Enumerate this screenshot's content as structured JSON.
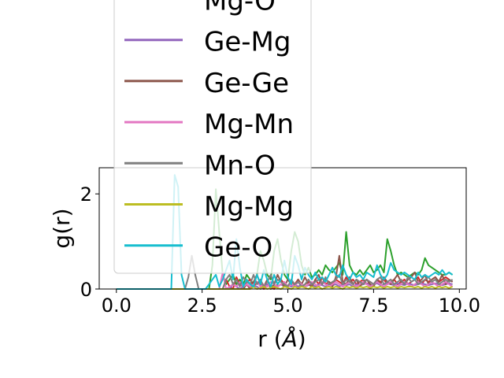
{
  "chart_data": {
    "type": "line",
    "title": "",
    "xlabel": "r ($\\AA$)",
    "xlabel_main": "r (",
    "xlabel_unit": "Å",
    "xlabel_close": ")",
    "ylabel": "g(r)",
    "xlim": [
      -0.5,
      10.2
    ],
    "ylim": [
      0,
      2.55
    ],
    "xticks": [
      "0.0",
      "2.5",
      "5.0",
      "7.5",
      "10.0"
    ],
    "xtick_values": [
      0,
      2.5,
      5,
      7.5,
      10
    ],
    "yticks": [
      "0",
      "2"
    ],
    "ytick_values": [
      0,
      2
    ],
    "grid": false,
    "legend_position": "upper-left, overflowing above the axes",
    "x": [
      0.0,
      0.5,
      1.0,
      1.5,
      1.6,
      1.7,
      1.8,
      1.9,
      2.0,
      2.1,
      2.2,
      2.3,
      2.4,
      2.5,
      2.6,
      2.7,
      2.8,
      2.9,
      3.0,
      3.1,
      3.2,
      3.3,
      3.4,
      3.5,
      3.6,
      3.7,
      3.8,
      3.9,
      4.0,
      4.1,
      4.2,
      4.3,
      4.4,
      4.5,
      4.6,
      4.7,
      4.8,
      4.9,
      5.0,
      5.1,
      5.2,
      5.3,
      5.4,
      5.5,
      5.6,
      5.7,
      5.8,
      5.9,
      6.0,
      6.1,
      6.2,
      6.3,
      6.4,
      6.5,
      6.6,
      6.7,
      6.8,
      6.9,
      7.0,
      7.1,
      7.2,
      7.3,
      7.4,
      7.5,
      7.6,
      7.7,
      7.8,
      7.9,
      8.0,
      8.1,
      8.2,
      8.3,
      8.4,
      8.5,
      8.6,
      8.7,
      8.8,
      8.9,
      9.0,
      9.1,
      9.2,
      9.3,
      9.4,
      9.5,
      9.6,
      9.7,
      9.8
    ],
    "series": [
      {
        "name": "Mg-O",
        "color": "#d62728",
        "values": [
          0,
          0,
          0,
          0,
          0,
          0,
          0,
          0,
          0,
          0,
          0,
          0,
          0,
          0,
          0,
          0,
          0,
          0,
          0,
          0,
          0.2,
          0.05,
          0,
          0.25,
          0.1,
          0.05,
          0.15,
          0.2,
          0.05,
          0.15,
          0.1,
          0,
          0.1,
          0.05,
          0,
          0.1,
          0.2,
          0.1,
          0.05,
          0.15,
          0.1,
          0.2,
          0.05,
          0.1,
          0.15,
          0.05,
          0.2,
          0.1,
          0.25,
          0.1,
          0.15,
          0.1,
          0.2,
          0.15,
          0.1,
          0.25,
          0.15,
          0.2,
          0.1,
          0.15,
          0.2,
          0.1,
          0.15,
          0.1,
          0.2,
          0.15,
          0.2,
          0.1,
          0.15,
          0.2,
          0.1,
          0.15,
          0.2,
          0.1,
          0.15,
          0.2,
          0.25,
          0.1,
          0.2,
          0.15,
          0.2,
          0.25,
          0.15,
          0.2,
          0.25,
          0.2,
          0.15
        ]
      },
      {
        "name": "Ge-Mg",
        "color": "#9467bd",
        "values": [
          0,
          0,
          0,
          0,
          0,
          0,
          0,
          0,
          0,
          0,
          0,
          0,
          0,
          0,
          0,
          0,
          0,
          0,
          0,
          0,
          0,
          0,
          0.1,
          0.05,
          0,
          0.05,
          0.1,
          0.05,
          0.08,
          0.05,
          0,
          0.05,
          0.1,
          0.05,
          0.08,
          0.05,
          0.1,
          0.05,
          0.08,
          0.05,
          0.1,
          0.05,
          0.1,
          0.05,
          0.08,
          0.1,
          0.05,
          0.1,
          0.08,
          0.05,
          0.1,
          0.08,
          0.1,
          0.05,
          0.1,
          0.08,
          0.1,
          0.05,
          0.1,
          0.08,
          0.1,
          0.12,
          0.08,
          0.1,
          0.12,
          0.08,
          0.1,
          0.12,
          0.1,
          0.08,
          0.12,
          0.1,
          0.08,
          0.12,
          0.1,
          0.08,
          0.1,
          0.12,
          0.1,
          0.08,
          0.1,
          0.12,
          0.1,
          0.08,
          0.1,
          0.12,
          0.1
        ]
      },
      {
        "name": "Ge-Ge",
        "color": "#8c564b",
        "values": [
          0,
          0,
          0,
          0,
          0,
          0,
          0,
          0,
          0,
          0,
          0,
          0,
          0,
          0,
          0,
          0,
          0,
          0,
          0,
          0,
          0,
          0,
          0,
          0,
          0,
          0,
          0.1,
          0,
          0.15,
          0.3,
          0.1,
          0.05,
          0.2,
          0,
          0.1,
          0.3,
          0.15,
          0.05,
          0.2,
          0.1,
          0.05,
          0.2,
          0.1,
          0.25,
          0.1,
          0.05,
          0.2,
          0.3,
          0.1,
          0.2,
          0.15,
          0.05,
          0.25,
          0.7,
          0.15,
          0.1,
          0.25,
          0.1,
          0.2,
          0.05,
          0.15,
          0.2,
          0.1,
          0.05,
          0.2,
          0.1,
          0.25,
          0.15,
          0.1,
          0.2,
          0.3,
          0.15,
          0.1,
          0.2,
          0.25,
          0.35,
          0.15,
          0.2,
          0.3,
          0.1,
          0.2,
          0.25,
          0.15,
          0.3,
          0.1,
          0.2,
          0.15
        ]
      },
      {
        "name": "Mg-Mn",
        "color": "#e377c2",
        "values": [
          0,
          0,
          0,
          0,
          0,
          0,
          0,
          0,
          0,
          0,
          0,
          0,
          0,
          0,
          0,
          0,
          0,
          0,
          0,
          0.35,
          0,
          0.05,
          0.1,
          0.05,
          0.15,
          0.05,
          0.1,
          0.05,
          0.1,
          0.15,
          0.05,
          0.1,
          0.05,
          0.15,
          0.1,
          0.05,
          0.1,
          0.15,
          0.05,
          0.1,
          0.05,
          0.15,
          0.1,
          0.05,
          0.1,
          0.15,
          0.1,
          0.05,
          0.15,
          0.1,
          0.05,
          0.1,
          0.15,
          0.1,
          0.05,
          0.1,
          0.15,
          0.1,
          0.05,
          0.1,
          0.15,
          0.1,
          0.05,
          0.1,
          0.15,
          0.1,
          0.05,
          0.1,
          0.15,
          0.1,
          0.05,
          0.1,
          0.15,
          0.1,
          0.05,
          0.1,
          0.15,
          0.1,
          0.05,
          0.1,
          0.15,
          0.1,
          0.05,
          0.1,
          0.15,
          0.1,
          0.05
        ]
      },
      {
        "name": "Mn-O",
        "color": "#7f7f7f",
        "values": [
          0,
          0,
          0,
          0,
          0,
          0,
          0,
          0,
          0,
          0.25,
          0.7,
          0.3,
          0,
          0,
          0,
          0,
          0,
          0,
          0,
          0,
          0.2,
          0.3,
          0.1,
          0.2,
          0.05,
          0.25,
          0.15,
          0.1,
          0.3,
          0.1,
          0.2,
          0.05,
          0.15,
          0.3,
          0.1,
          0.2,
          0.15,
          0.1,
          0.05,
          0.2,
          0.1,
          0.15,
          0.05,
          0.1,
          0.2,
          0.1,
          0.15,
          0.2,
          0.1,
          0.25,
          0.1,
          0.15,
          0.2,
          0.3,
          0.1,
          0.2,
          0.15,
          0.1,
          0.2,
          0.15,
          0.1,
          0.2,
          0.15,
          0.1,
          0.2,
          0.25,
          0.1,
          0.15,
          0.2,
          0.1,
          0.15,
          0.2,
          0.1,
          0.25,
          0.15,
          0.2,
          0.1,
          0.15,
          0.2,
          0.25,
          0.15,
          0.2,
          0.1,
          0.15,
          0.2,
          0.15,
          0.2
        ]
      },
      {
        "name": "Mg-Mg",
        "color": "#bcbd22",
        "values": [
          0,
          0,
          0,
          0,
          0,
          0,
          0,
          0,
          0,
          0,
          0,
          0,
          0,
          0,
          0,
          0,
          0,
          0,
          0,
          0,
          0,
          0,
          0,
          0,
          0,
          0,
          0,
          0,
          0.05,
          0,
          0.02,
          0.05,
          0,
          0.03,
          0.05,
          0.02,
          0,
          0.05,
          0.03,
          0,
          0.05,
          0.02,
          0.05,
          0.03,
          0,
          0.05,
          0.02,
          0.05,
          0,
          0.03,
          0.05,
          0.02,
          0.05,
          0.03,
          0,
          0.05,
          0.03,
          0.05,
          0.02,
          0.05,
          0.03,
          0.05,
          0.02,
          0.05,
          0.03,
          0.05,
          0.02,
          0.05,
          0.03,
          0.05,
          0.02,
          0.05,
          0.03,
          0.05,
          0.05,
          0.03,
          0.05,
          0.02,
          0.05,
          0.03,
          0.05,
          0.02,
          0.05,
          0.03,
          0.05,
          0.02,
          0.05
        ]
      },
      {
        "name": "Ge-O",
        "color": "#17becf",
        "values": [
          0,
          0,
          0,
          0,
          0,
          2.4,
          2.15,
          0.3,
          0,
          0,
          0,
          0,
          0,
          0,
          0,
          0.1,
          0.2,
          0.3,
          0.05,
          0.2,
          0.4,
          0.6,
          0.2,
          1.05,
          0.45,
          0.05,
          0.2,
          0.1,
          0.05,
          0.3,
          0.1,
          0.4,
          0.2,
          0.05,
          0.3,
          0.1,
          0.2,
          0.6,
          0.25,
          0.1,
          0.7,
          0.5,
          0.2,
          0.45,
          0.3,
          0.2,
          0.35,
          0.2,
          0.25,
          0.15,
          0.3,
          0.45,
          0.3,
          0.25,
          0.5,
          0.3,
          0.2,
          0.35,
          0.25,
          0.3,
          0.2,
          0.35,
          0.3,
          0.25,
          0.5,
          0.3,
          0.2,
          0.3,
          0.55,
          0.4,
          0.35,
          0.3,
          0.35,
          0.3,
          0.25,
          0.2,
          0.35,
          0.25,
          0.3,
          0.25,
          0.3,
          0.35,
          0.3,
          0.4,
          0.3,
          0.35,
          0.3
        ]
      },
      {
        "name": "",
        "color": "#2ca02c",
        "values": [
          0,
          0,
          0,
          0,
          0,
          0,
          0,
          0,
          0,
          0,
          0,
          0,
          0,
          0,
          0,
          0,
          0.5,
          2.1,
          1.2,
          0.3,
          0.1,
          0.2,
          0.3,
          0.1,
          0.2,
          0.1,
          0.3,
          0.2,
          0.1,
          0.3,
          0.8,
          0.6,
          0.3,
          0.2,
          0.8,
          1.05,
          0.6,
          0.3,
          0.2,
          0.8,
          1.2,
          1.0,
          0.5,
          0.3,
          0.45,
          0.25,
          0.3,
          0.4,
          0.3,
          0.5,
          0.4,
          0.35,
          0.45,
          0.55,
          0.3,
          1.2,
          0.5,
          0.35,
          0.3,
          0.4,
          0.3,
          0.4,
          0.5,
          0.35,
          0.4,
          0.5,
          0.35,
          1.05,
          0.8,
          0.5,
          0.3,
          0.35,
          0.3,
          0.25,
          0.3,
          0.35,
          0.3,
          0.4,
          0.65,
          0.5,
          0.45,
          0.4,
          0.35,
          0.3,
          0.3,
          0.35,
          0.3
        ]
      }
    ],
    "legend": [
      {
        "label": "Mg-O",
        "color": "#d62728"
      },
      {
        "label": "Ge-Mg",
        "color": "#9467bd"
      },
      {
        "label": "Ge-Ge",
        "color": "#8c564b"
      },
      {
        "label": "Mg-Mn",
        "color": "#e377c2"
      },
      {
        "label": "Mn-O",
        "color": "#7f7f7f"
      },
      {
        "label": "Mg-Mg",
        "color": "#bcbd22"
      },
      {
        "label": "Ge-O",
        "color": "#17becf"
      }
    ]
  }
}
